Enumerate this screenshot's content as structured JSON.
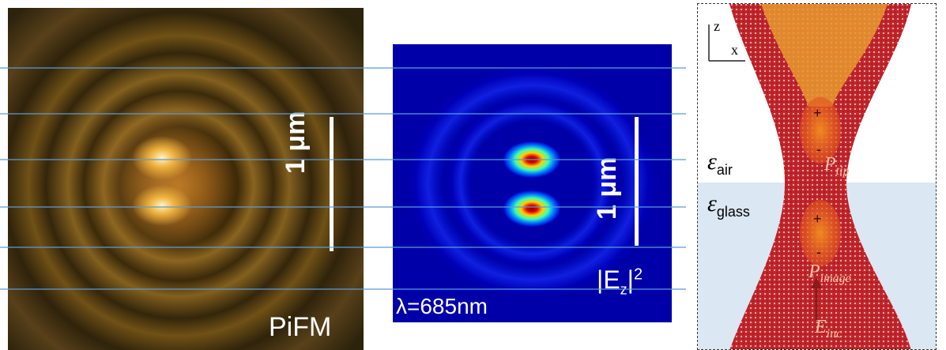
{
  "left_panel": {
    "label": "PiFM",
    "scale_bar_label": "1 μm"
  },
  "middle_panel": {
    "scale_bar_label": "1 μm",
    "field_label": "|E",
    "field_sub": "z",
    "field_exp": "2",
    "wavelength_label": "λ=685nm"
  },
  "right_panel": {
    "axis_z": "z",
    "axis_x": "x",
    "eps_air_symbol": "ε",
    "eps_air_sub": "air",
    "eps_glass_symbol": "ε",
    "eps_glass_sub": "glass",
    "p_tip_label": "P",
    "p_tip_sub": "tip",
    "p_image_label": "P",
    "p_image_sub": "image",
    "e_inc_label": "E",
    "e_inc_sub": "inc",
    "plus": "+",
    "minus": "-"
  },
  "colors": {
    "guide_line": "#5b9bd5",
    "glass_region": "#dbe7f3",
    "tip_fill": "#c0262c",
    "tip_hot": "#f0a030"
  }
}
